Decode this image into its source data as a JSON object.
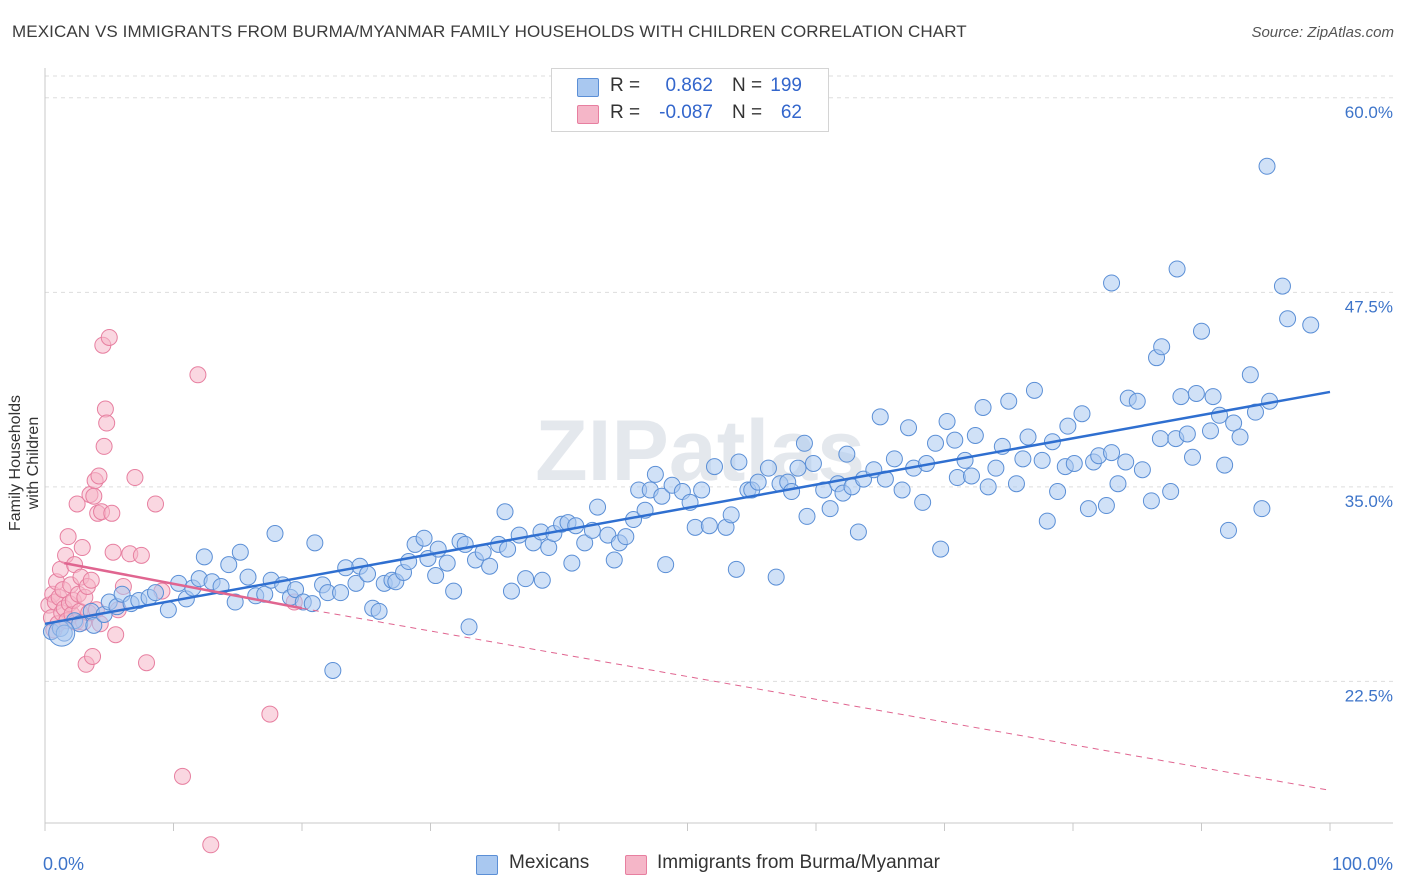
{
  "title": "MEXICAN VS IMMIGRANTS FROM BURMA/MYANMAR FAMILY HOUSEHOLDS WITH CHILDREN CORRELATION CHART",
  "source": "Source: ZipAtlas.com",
  "watermark": "ZIPatlas",
  "legend": {
    "series1": {
      "r_label": "R =",
      "r_value": "0.862",
      "n_label": "N =",
      "n_value": "199"
    },
    "series2": {
      "r_label": "R =",
      "r_value": "-0.087",
      "n_label": "N =",
      "n_value": "62"
    }
  },
  "colors": {
    "blue_fill": "#a9c8f0",
    "blue_stroke": "#5b8fd6",
    "blue_line": "#2f6fd0",
    "pink_fill": "#f5b6c8",
    "pink_stroke": "#e77fa0",
    "pink_line": "#e06590",
    "axis_text": "#3d74c9",
    "grid": "#dddddd"
  },
  "chart_data": {
    "type": "scatter",
    "title": "MEXICAN VS IMMIGRANTS FROM BURMA/MYANMAR FAMILY HOUSEHOLDS WITH CHILDREN CORRELATION CHART",
    "xlabel": "",
    "ylabel": "Family Households with Children",
    "xlim": [
      0,
      100
    ],
    "ylim": [
      13.4,
      61.4
    ],
    "x_tick_labels": [
      "0.0%",
      "100.0%"
    ],
    "y_ticks": [
      22.5,
      35.0,
      47.5,
      60.0
    ],
    "y_tick_labels": [
      "22.5%",
      "35.0%",
      "47.5%",
      "60.0%"
    ],
    "legend_position": "top-center",
    "series": [
      {
        "name": "Mexicans",
        "r": 0.862,
        "n": 199,
        "trend": {
          "x": [
            0,
            100
          ],
          "y": [
            26.2,
            41.1
          ]
        },
        "points": [
          [
            0.5,
            25.7
          ],
          [
            1.2,
            25.9
          ],
          [
            1.5,
            25.6
          ],
          [
            2.3,
            26.4
          ],
          [
            2.7,
            26.2
          ],
          [
            3.6,
            27.0
          ],
          [
            3.8,
            26.1
          ],
          [
            4.6,
            26.8
          ],
          [
            5.0,
            27.6
          ],
          [
            5.6,
            27.3
          ],
          [
            6.0,
            28.1
          ],
          [
            6.7,
            27.5
          ],
          [
            7.3,
            27.7
          ],
          [
            8.1,
            27.9
          ],
          [
            8.6,
            28.2
          ],
          [
            9.6,
            27.1
          ],
          [
            10.4,
            28.8
          ],
          [
            11.0,
            27.8
          ],
          [
            11.5,
            28.5
          ],
          [
            12.0,
            29.1
          ],
          [
            12.4,
            30.5
          ],
          [
            13.0,
            28.9
          ],
          [
            13.7,
            28.6
          ],
          [
            14.3,
            30.0
          ],
          [
            14.8,
            27.6
          ],
          [
            15.2,
            30.8
          ],
          [
            15.8,
            29.2
          ],
          [
            16.4,
            28.0
          ],
          [
            17.1,
            28.1
          ],
          [
            17.6,
            29.0
          ],
          [
            17.9,
            32.0
          ],
          [
            18.5,
            28.7
          ],
          [
            19.1,
            27.9
          ],
          [
            19.5,
            28.4
          ],
          [
            20.1,
            27.6
          ],
          [
            20.8,
            27.5
          ],
          [
            21.0,
            31.4
          ],
          [
            21.6,
            28.7
          ],
          [
            22.0,
            28.2
          ],
          [
            22.4,
            23.2
          ],
          [
            23.0,
            28.2
          ],
          [
            23.4,
            29.8
          ],
          [
            24.2,
            28.8
          ],
          [
            24.5,
            29.9
          ],
          [
            25.1,
            29.4
          ],
          [
            25.5,
            27.2
          ],
          [
            26.0,
            27.0
          ],
          [
            26.4,
            28.8
          ],
          [
            27.0,
            29.0
          ],
          [
            27.3,
            28.9
          ],
          [
            27.9,
            29.5
          ],
          [
            28.8,
            31.3
          ],
          [
            28.3,
            30.2
          ],
          [
            29.5,
            31.7
          ],
          [
            29.8,
            30.4
          ],
          [
            30.4,
            29.3
          ],
          [
            30.6,
            31.0
          ],
          [
            31.3,
            30.1
          ],
          [
            31.8,
            28.3
          ],
          [
            32.3,
            31.5
          ],
          [
            32.7,
            31.3
          ],
          [
            33.0,
            26.0
          ],
          [
            33.5,
            30.3
          ],
          [
            34.1,
            30.8
          ],
          [
            34.6,
            29.9
          ],
          [
            35.3,
            31.3
          ],
          [
            36.0,
            31.0
          ],
          [
            35.8,
            33.4
          ],
          [
            36.3,
            28.3
          ],
          [
            36.9,
            31.9
          ],
          [
            37.4,
            29.1
          ],
          [
            38.0,
            31.4
          ],
          [
            38.6,
            32.1
          ],
          [
            38.7,
            29.0
          ],
          [
            39.2,
            31.1
          ],
          [
            39.6,
            32.0
          ],
          [
            40.2,
            32.6
          ],
          [
            40.7,
            32.7
          ],
          [
            41.0,
            30.1
          ],
          [
            41.3,
            32.5
          ],
          [
            42.0,
            31.4
          ],
          [
            42.6,
            32.2
          ],
          [
            43.0,
            33.7
          ],
          [
            43.8,
            31.9
          ],
          [
            44.3,
            30.3
          ],
          [
            44.7,
            31.4
          ],
          [
            45.2,
            31.8
          ],
          [
            45.8,
            32.9
          ],
          [
            46.2,
            34.8
          ],
          [
            46.7,
            33.5
          ],
          [
            47.1,
            34.8
          ],
          [
            47.5,
            35.8
          ],
          [
            48.0,
            34.4
          ],
          [
            48.3,
            30.0
          ],
          [
            48.8,
            35.1
          ],
          [
            49.6,
            34.7
          ],
          [
            50.2,
            34.0
          ],
          [
            50.6,
            32.4
          ],
          [
            51.1,
            34.8
          ],
          [
            51.7,
            32.5
          ],
          [
            52.1,
            36.3
          ],
          [
            53.0,
            32.4
          ],
          [
            53.4,
            33.2
          ],
          [
            53.8,
            29.7
          ],
          [
            54.0,
            36.6
          ],
          [
            54.7,
            34.8
          ],
          [
            55.0,
            34.8
          ],
          [
            55.5,
            35.3
          ],
          [
            56.3,
            36.2
          ],
          [
            56.9,
            29.2
          ],
          [
            57.2,
            35.2
          ],
          [
            57.8,
            35.3
          ],
          [
            58.1,
            34.7
          ],
          [
            58.6,
            36.2
          ],
          [
            59.1,
            37.8
          ],
          [
            59.3,
            33.1
          ],
          [
            59.8,
            36.5
          ],
          [
            60.6,
            34.8
          ],
          [
            61.1,
            33.6
          ],
          [
            61.7,
            35.2
          ],
          [
            62.1,
            34.6
          ],
          [
            62.4,
            37.1
          ],
          [
            62.8,
            35.0
          ],
          [
            63.3,
            32.1
          ],
          [
            63.7,
            35.5
          ],
          [
            64.5,
            36.1
          ],
          [
            65.0,
            39.5
          ],
          [
            65.4,
            35.5
          ],
          [
            66.1,
            36.8
          ],
          [
            66.7,
            34.8
          ],
          [
            67.2,
            38.8
          ],
          [
            67.6,
            36.2
          ],
          [
            68.3,
            34.0
          ],
          [
            68.6,
            36.5
          ],
          [
            69.3,
            37.8
          ],
          [
            69.7,
            31.0
          ],
          [
            70.2,
            39.2
          ],
          [
            70.8,
            38.0
          ],
          [
            71.0,
            35.6
          ],
          [
            71.6,
            36.7
          ],
          [
            72.1,
            35.7
          ],
          [
            72.4,
            38.3
          ],
          [
            73.0,
            40.1
          ],
          [
            73.4,
            35.0
          ],
          [
            74.0,
            36.2
          ],
          [
            74.5,
            37.6
          ],
          [
            75.0,
            40.5
          ],
          [
            75.6,
            35.2
          ],
          [
            76.1,
            36.8
          ],
          [
            76.5,
            38.2
          ],
          [
            77.0,
            41.2
          ],
          [
            77.6,
            36.7
          ],
          [
            78.0,
            32.8
          ],
          [
            78.4,
            37.9
          ],
          [
            78.8,
            34.7
          ],
          [
            79.4,
            36.3
          ],
          [
            79.6,
            38.9
          ],
          [
            80.1,
            36.5
          ],
          [
            80.7,
            39.7
          ],
          [
            81.2,
            33.6
          ],
          [
            81.6,
            36.6
          ],
          [
            82.0,
            37.0
          ],
          [
            82.6,
            33.8
          ],
          [
            83.0,
            37.2
          ],
          [
            83.5,
            35.2
          ],
          [
            84.1,
            36.6
          ],
          [
            84.3,
            40.7
          ],
          [
            85.0,
            40.5
          ],
          [
            85.4,
            36.1
          ],
          [
            86.1,
            34.1
          ],
          [
            86.5,
            43.3
          ],
          [
            86.8,
            38.1
          ],
          [
            86.9,
            44.0
          ],
          [
            87.6,
            34.7
          ],
          [
            88.0,
            38.1
          ],
          [
            88.4,
            40.8
          ],
          [
            88.9,
            38.4
          ],
          [
            89.3,
            36.9
          ],
          [
            89.6,
            41.0
          ],
          [
            90.0,
            45.0
          ],
          [
            90.7,
            38.6
          ],
          [
            90.9,
            40.8
          ],
          [
            91.4,
            39.6
          ],
          [
            91.8,
            36.4
          ],
          [
            92.1,
            32.2
          ],
          [
            92.5,
            39.1
          ],
          [
            93.0,
            38.2
          ],
          [
            93.8,
            42.2
          ],
          [
            94.2,
            39.8
          ],
          [
            94.7,
            33.6
          ],
          [
            95.3,
            40.5
          ],
          [
            83.0,
            48.1
          ],
          [
            88.1,
            49.0
          ],
          [
            95.1,
            55.6
          ],
          [
            96.3,
            47.9
          ],
          [
            96.7,
            45.8
          ],
          [
            98.5,
            45.4
          ]
        ]
      },
      {
        "name": "Immigrants from Burma/Myanmar",
        "r": -0.087,
        "n": 62,
        "trend_solid": {
          "x": [
            1.5,
            20.0
          ],
          "y": [
            30.1,
            27.2
          ]
        },
        "trend_dashed": {
          "x": [
            20.0,
            100
          ],
          "y": [
            27.2,
            15.5
          ]
        },
        "points": [
          [
            0.3,
            27.4
          ],
          [
            0.5,
            26.6
          ],
          [
            0.6,
            28.1
          ],
          [
            0.7,
            25.8
          ],
          [
            0.8,
            27.6
          ],
          [
            0.9,
            28.9
          ],
          [
            1.0,
            26.2
          ],
          [
            1.1,
            27.9
          ],
          [
            1.2,
            29.7
          ],
          [
            1.3,
            26.9
          ],
          [
            1.4,
            28.4
          ],
          [
            1.5,
            27.2
          ],
          [
            1.6,
            30.6
          ],
          [
            1.7,
            26.4
          ],
          [
            1.8,
            31.8
          ],
          [
            1.9,
            27.5
          ],
          [
            2.0,
            28.7
          ],
          [
            2.1,
            26.8
          ],
          [
            2.2,
            27.7
          ],
          [
            2.3,
            30.0
          ],
          [
            2.4,
            26.3
          ],
          [
            2.5,
            33.9
          ],
          [
            2.6,
            28.1
          ],
          [
            2.7,
            27.0
          ],
          [
            2.8,
            29.2
          ],
          [
            2.9,
            31.1
          ],
          [
            3.0,
            26.3
          ],
          [
            3.1,
            27.9
          ],
          [
            3.2,
            23.6
          ],
          [
            3.3,
            28.6
          ],
          [
            3.4,
            26.9
          ],
          [
            3.5,
            34.5
          ],
          [
            3.6,
            29.0
          ],
          [
            3.7,
            24.1
          ],
          [
            3.8,
            34.4
          ],
          [
            3.9,
            35.4
          ],
          [
            4.0,
            27.1
          ],
          [
            4.1,
            33.3
          ],
          [
            4.2,
            35.7
          ],
          [
            4.3,
            26.2
          ],
          [
            4.4,
            33.4
          ],
          [
            4.5,
            44.1
          ],
          [
            4.6,
            37.6
          ],
          [
            4.7,
            40.0
          ],
          [
            4.8,
            39.1
          ],
          [
            5.0,
            44.6
          ],
          [
            5.2,
            33.3
          ],
          [
            5.5,
            25.5
          ],
          [
            5.3,
            30.8
          ],
          [
            5.7,
            27.1
          ],
          [
            6.1,
            28.6
          ],
          [
            6.6,
            30.7
          ],
          [
            7.0,
            35.6
          ],
          [
            7.5,
            30.6
          ],
          [
            7.9,
            23.7
          ],
          [
            8.6,
            33.9
          ],
          [
            9.1,
            28.3
          ],
          [
            10.7,
            16.4
          ],
          [
            11.9,
            42.2
          ],
          [
            12.9,
            12.0
          ],
          [
            17.5,
            20.4
          ],
          [
            19.4,
            27.6
          ]
        ]
      }
    ]
  }
}
